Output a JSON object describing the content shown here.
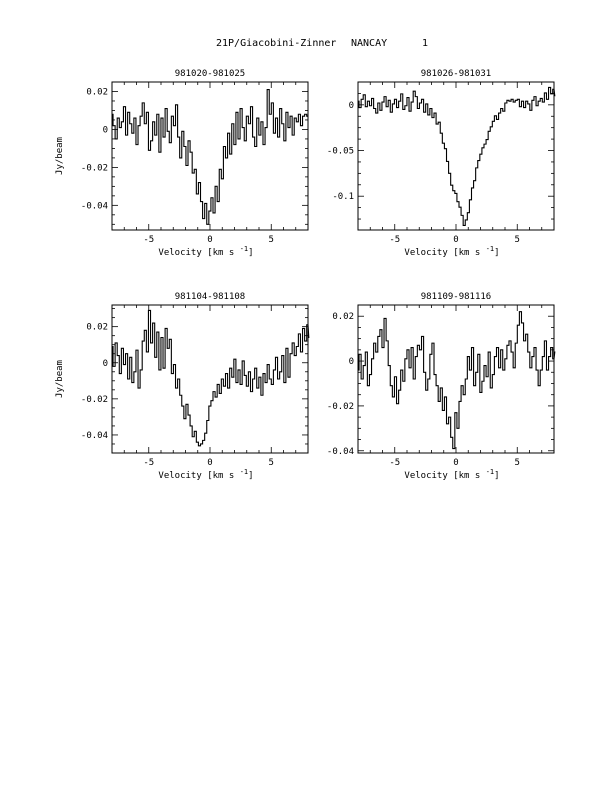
{
  "header": {
    "comet": "21P/Giacobini-Zinner",
    "station": "NANCAY",
    "page": "1"
  },
  "chart_data": [
    {
      "type": "line",
      "title": "981020-981025",
      "xlabel": "Velocity [km s",
      "xlabel_sup": "-1",
      "xlabel_end": "]",
      "ylabel": "Jy/beam",
      "xlim": [
        -8,
        8
      ],
      "ylim": [
        -0.053,
        0.025
      ],
      "xticks": [
        -5,
        0,
        5
      ],
      "yticks": [
        0.02,
        0,
        -0.02,
        -0.04
      ],
      "ytick_labels": [
        "0.02",
        "0",
        "-0.02",
        "-0.04"
      ],
      "step": "mid",
      "x_start": -8,
      "x_step": 0.17,
      "y": [
        0.008,
        0.002,
        -0.005,
        0.006,
        0.001,
        0.004,
        0.012,
        -0.003,
        0.009,
        0.003,
        -0.002,
        0.006,
        -0.008,
        0.002,
        0.007,
        0.014,
        0.003,
        0.009,
        -0.011,
        -0.006,
        0.004,
        -0.003,
        0.008,
        -0.012,
        0.006,
        -0.004,
        0.011,
        -0.001,
        -0.007,
        0.007,
        0.002,
        0.013,
        -0.004,
        -0.015,
        -0.001,
        -0.009,
        -0.019,
        -0.006,
        -0.012,
        -0.023,
        -0.021,
        -0.034,
        -0.028,
        -0.038,
        -0.047,
        -0.039,
        -0.05,
        -0.043,
        -0.036,
        -0.044,
        -0.03,
        -0.038,
        -0.021,
        -0.026,
        -0.009,
        -0.015,
        -0.002,
        -0.013,
        0.003,
        -0.008,
        0.009,
        -0.005,
        0.011,
        0.001,
        -0.006,
        0.007,
        0.003,
        0.012,
        -0.004,
        -0.009,
        0.006,
        -0.003,
        0.004,
        -0.008,
        0.001,
        0.021,
        0.008,
        0.014,
        -0.002,
        0.006,
        -0.004,
        0.011,
        0.003,
        -0.006,
        0.009,
        0.001,
        0.007,
        -0.003,
        0.006,
        0.004,
        0.008,
        0.002,
        0.007,
        0.008,
        0.007
      ]
    },
    {
      "type": "line",
      "title": "981026-981031",
      "xlabel": "Velocity [km s",
      "xlabel_sup": "-1",
      "xlabel_end": "]",
      "ylabel": "",
      "xlim": [
        -8,
        8
      ],
      "ylim": [
        -0.137,
        0.025
      ],
      "xticks": [
        -5,
        0,
        5
      ],
      "yticks": [
        0,
        -0.05,
        -0.1
      ],
      "ytick_labels": [
        "0",
        "-0.05",
        "-0.1"
      ],
      "step": "mid",
      "x_start": -8,
      "x_step": 0.17,
      "y": [
        0.004,
        -0.003,
        0.006,
        0.011,
        -0.002,
        0.004,
        -0.001,
        0.007,
        -0.004,
        -0.009,
        0.002,
        -0.006,
        0.003,
        0.009,
        -0.002,
        0.005,
        -0.008,
        0.001,
        0.006,
        -0.003,
        0.004,
        0.012,
        -0.005,
        -0.001,
        0.008,
        -0.007,
        0.003,
        0.015,
        0.009,
        -0.004,
        0.002,
        0.006,
        -0.008,
        0.001,
        -0.011,
        -0.004,
        -0.014,
        -0.009,
        -0.021,
        -0.019,
        -0.031,
        -0.042,
        -0.048,
        -0.062,
        -0.075,
        -0.088,
        -0.094,
        -0.097,
        -0.106,
        -0.112,
        -0.121,
        -0.132,
        -0.126,
        -0.118,
        -0.104,
        -0.091,
        -0.083,
        -0.069,
        -0.061,
        -0.054,
        -0.047,
        -0.043,
        -0.038,
        -0.029,
        -0.024,
        -0.018,
        -0.012,
        -0.016,
        -0.009,
        -0.004,
        -0.007,
        0.002,
        0.005,
        0.004,
        0.006,
        0.003,
        0.005,
        0.006,
        -0.002,
        0.004,
        -0.003,
        0.004,
        0.001,
        -0.006,
        0.005,
        0.009,
        -0.001,
        0.004,
        0.007,
        0.003,
        0.013,
        0.006,
        0.019,
        0.012,
        0.017,
        0.01
      ]
    },
    {
      "type": "line",
      "title": "981104-981108",
      "xlabel": "Velocity [km s",
      "xlabel_sup": "-1",
      "xlabel_end": "]",
      "ylabel": "Jy/beam",
      "xlim": [
        -8,
        8
      ],
      "ylim": [
        -0.05,
        0.032
      ],
      "xticks": [
        -5,
        0,
        5
      ],
      "yticks": [
        0.02,
        0,
        -0.02,
        -0.04
      ],
      "ytick_labels": [
        "0.02",
        "0",
        "-0.02",
        "-0.04"
      ],
      "step": "mid",
      "x_start": -8,
      "x_step": 0.17,
      "y": [
        0.009,
        -0.002,
        0.011,
        0.004,
        -0.006,
        0.008,
        -0.001,
        0.005,
        -0.009,
        0.003,
        -0.011,
        -0.005,
        0.007,
        -0.014,
        -0.004,
        0.012,
        0.018,
        0.006,
        0.029,
        0.011,
        0.022,
        0.003,
        0.017,
        -0.004,
        0.014,
        -0.003,
        0.019,
        0.008,
        0.013,
        -0.006,
        -0.001,
        -0.014,
        -0.009,
        -0.018,
        -0.024,
        -0.031,
        -0.023,
        -0.029,
        -0.035,
        -0.041,
        -0.038,
        -0.044,
        -0.046,
        -0.045,
        -0.043,
        -0.039,
        -0.032,
        -0.024,
        -0.021,
        -0.016,
        -0.019,
        -0.012,
        -0.017,
        -0.009,
        -0.013,
        -0.006,
        -0.014,
        -0.003,
        -0.008,
        0.002,
        -0.011,
        -0.004,
        -0.012,
        0.001,
        -0.007,
        -0.013,
        -0.005,
        -0.016,
        -0.009,
        -0.003,
        -0.014,
        -0.008,
        -0.018,
        -0.006,
        -0.011,
        -0.001,
        -0.009,
        -0.012,
        -0.004,
        0.003,
        -0.009,
        -0.005,
        0.004,
        -0.011,
        0.008,
        -0.008,
        0.005,
        0.011,
        0.004,
        0.009,
        0.016,
        0.006,
        0.019,
        0.012,
        0.021,
        0.014
      ]
    },
    {
      "type": "line",
      "title": "981109-981116",
      "xlabel": "Velocity [km s",
      "xlabel_sup": "-1",
      "xlabel_end": "]",
      "ylabel": "",
      "xlim": [
        -8,
        8
      ],
      "ylim": [
        -0.041,
        0.025
      ],
      "xticks": [
        -5,
        0,
        5
      ],
      "yticks": [
        0.02,
        0,
        -0.02,
        -0.04
      ],
      "ytick_labels": [
        "0.02",
        "0",
        "-0.02",
        "-0.04"
      ],
      "step": "mid",
      "x_start": -8,
      "x_step": 0.17,
      "y": [
        -0.004,
        0.003,
        -0.008,
        -0.002,
        0.004,
        -0.011,
        -0.006,
        0.001,
        0.008,
        0.004,
        0.011,
        0.014,
        0.006,
        0.019,
        0.009,
        -0.002,
        -0.011,
        -0.016,
        -0.007,
        -0.019,
        -0.013,
        -0.004,
        -0.009,
        0.001,
        0.005,
        -0.003,
        0.006,
        -0.008,
        0.002,
        0.007,
        0.005,
        0.011,
        -0.005,
        -0.013,
        -0.008,
        0.003,
        0.008,
        -0.006,
        -0.011,
        -0.018,
        -0.012,
        -0.022,
        -0.016,
        -0.028,
        -0.025,
        -0.034,
        -0.039,
        -0.023,
        -0.03,
        -0.018,
        -0.011,
        -0.015,
        -0.008,
        0.002,
        -0.004,
        0.006,
        -0.011,
        -0.005,
        0.003,
        -0.014,
        -0.009,
        -0.002,
        -0.007,
        0.004,
        -0.012,
        -0.006,
        0.002,
        0.006,
        -0.003,
        0.005,
        -0.004,
        0.001,
        0.007,
        0.009,
        0.004,
        -0.003,
        0.008,
        0.016,
        0.022,
        0.017,
        0.009,
        0.012,
        0.004,
        -0.003,
        0.002,
        0.006,
        -0.004,
        -0.011,
        -0.004,
        0.002,
        0.009,
        -0.004,
        0.002,
        0.006,
        0.001,
        0.004
      ]
    }
  ]
}
